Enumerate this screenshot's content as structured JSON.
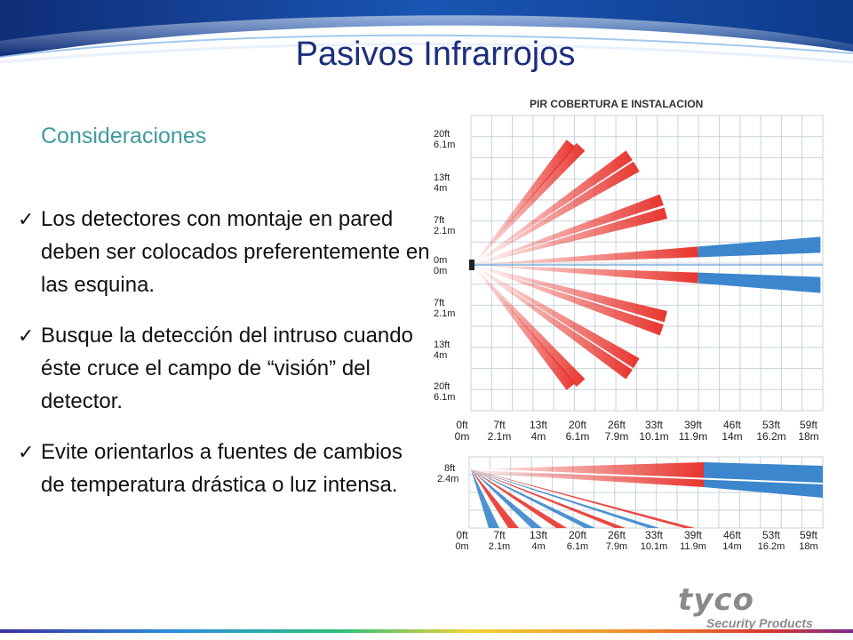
{
  "slide": {
    "title": "Pasivos Infrarrojos",
    "subtitle": "Consideraciones",
    "bullets": [
      "Los detectores con montaje en pared deben ser colocados preferentemente en las esquina.",
      "Busque la detección del intruso cuando éste cruce el campo de “visión” del detector.",
      "Evite orientarlos a fuentes de cambios de temperatura drástica o luz intensa."
    ]
  },
  "diagram": {
    "title": "PIR COBERTURA E INSTALACION",
    "y_labels": [
      {
        "ft": "20ft",
        "m": "6.1m"
      },
      {
        "ft": "13ft",
        "m": "4m"
      },
      {
        "ft": "7ft",
        "m": "2.1m"
      },
      {
        "ft": "0m",
        "m": "0m"
      },
      {
        "ft": "7ft",
        "m": "2.1m"
      },
      {
        "ft": "13ft",
        "m": "4m"
      },
      {
        "ft": "20ft",
        "m": "6.1m"
      }
    ],
    "x_labels": [
      {
        "ft": "0ft",
        "m": "0m"
      },
      {
        "ft": "7ft",
        "m": "2.1m"
      },
      {
        "ft": "13ft",
        "m": "4m"
      },
      {
        "ft": "20ft",
        "m": "6.1m"
      },
      {
        "ft": "26ft",
        "m": "7.9m"
      },
      {
        "ft": "33ft",
        "m": "10.1m"
      },
      {
        "ft": "39ft",
        "m": "11.9m"
      },
      {
        "ft": "46ft",
        "m": "14m"
      },
      {
        "ft": "53ft",
        "m": "16.2m"
      },
      {
        "ft": "59ft",
        "m": "18m"
      }
    ],
    "side_label": {
      "ft": "8ft",
      "m": "2.4m"
    },
    "colors": {
      "near": "#e8352e",
      "far": "#3b86cc",
      "grid": "#c9d3da"
    }
  },
  "logo": {
    "word": "tyco",
    "tagline": "Security Products"
  }
}
